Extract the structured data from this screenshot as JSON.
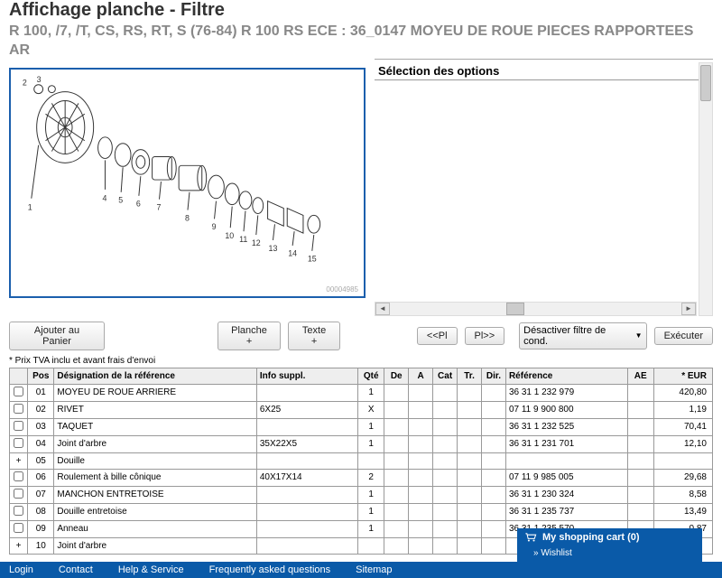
{
  "header": {
    "title": "Affichage planche - Filtre",
    "subtitle": "R 100, /7, /T, CS, RS, RT, S (76-84) R 100 RS ECE : 36_0147 MOYEU DE ROUE PIECES RAPPORTEES AR"
  },
  "rightPanel": {
    "optionsHeader": "Sélection des options"
  },
  "diagram": {
    "id": "00004985",
    "callouts": [
      "1",
      "2",
      "3",
      "4",
      "5",
      "6",
      "7",
      "8",
      "9",
      "10",
      "11",
      "12",
      "13",
      "14",
      "15"
    ],
    "border_color": "#1b5fad"
  },
  "toolbar": {
    "addCart": "Ajouter au Panier",
    "planche": "Planche +",
    "texte": "Texte +",
    "prevPl": "<<Pl",
    "nextPl": "Pl>>",
    "filterSelect": "Désactiver filtre de cond.",
    "execute": "Exécuter"
  },
  "note": "* Prix TVA inclu et avant frais d'envoi",
  "table": {
    "headers": [
      "",
      "Pos",
      "Désignation de la référence",
      "Info suppl.",
      "Qté",
      "De",
      "A",
      "Cat",
      "Tr.",
      "Dir.",
      "Référence",
      "AE",
      "* EUR"
    ],
    "rows": [
      {
        "chk": true,
        "pos": "01",
        "desc": "MOYEU DE ROUE ARRIERE",
        "info": "",
        "qte": "1",
        "de": "",
        "a": "",
        "cat": "",
        "tr": "",
        "dir": "",
        "ref": "36 31 1 232 979",
        "ae": "",
        "eur": "420,80"
      },
      {
        "chk": true,
        "pos": "02",
        "desc": "RIVET",
        "info": "6X25",
        "qte": "X",
        "de": "",
        "a": "",
        "cat": "",
        "tr": "",
        "dir": "",
        "ref": "07 11 9 900 800",
        "ae": "",
        "eur": "1,19"
      },
      {
        "chk": true,
        "pos": "03",
        "desc": "TAQUET",
        "info": "",
        "qte": "1",
        "de": "",
        "a": "",
        "cat": "",
        "tr": "",
        "dir": "",
        "ref": "36 31 1 232 525",
        "ae": "",
        "eur": "70,41"
      },
      {
        "chk": true,
        "pos": "04",
        "desc": "Joint d'arbre",
        "info": "35X22X5",
        "qte": "1",
        "de": "",
        "a": "",
        "cat": "",
        "tr": "",
        "dir": "",
        "ref": "36 31 1 231 701",
        "ae": "",
        "eur": "12,10"
      },
      {
        "plus": true,
        "pos": "05",
        "desc": "Douille",
        "info": "",
        "qte": "",
        "de": "",
        "a": "",
        "cat": "",
        "tr": "",
        "dir": "",
        "ref": "",
        "ae": "",
        "eur": ""
      },
      {
        "chk": true,
        "pos": "06",
        "desc": "Roulement à bille cônique",
        "info": "40X17X14",
        "qte": "2",
        "de": "",
        "a": "",
        "cat": "",
        "tr": "",
        "dir": "",
        "ref": "07 11 9 985 005",
        "ae": "",
        "eur": "29,68"
      },
      {
        "chk": true,
        "pos": "07",
        "desc": "MANCHON ENTRETOISE",
        "info": "",
        "qte": "1",
        "de": "",
        "a": "",
        "cat": "",
        "tr": "",
        "dir": "",
        "ref": "36 31 1 230 324",
        "ae": "",
        "eur": "8,58"
      },
      {
        "chk": true,
        "pos": "08",
        "desc": "Douille entretoise",
        "info": "",
        "qte": "1",
        "de": "",
        "a": "",
        "cat": "",
        "tr": "",
        "dir": "",
        "ref": "36 31 1 235 737",
        "ae": "",
        "eur": "13,49"
      },
      {
        "chk": true,
        "pos": "09",
        "desc": "Anneau",
        "info": "",
        "qte": "1",
        "de": "",
        "a": "",
        "cat": "",
        "tr": "",
        "dir": "",
        "ref": "36 31 1 235 570",
        "ae": "",
        "eur": "0,87"
      },
      {
        "plus": true,
        "pos": "10",
        "desc": "Joint d'arbre",
        "info": "",
        "qte": "",
        "de": "",
        "a": "",
        "cat": "",
        "tr": "",
        "dir": "",
        "ref": "",
        "ae": "",
        "eur": ""
      }
    ]
  },
  "cart": {
    "label": "My shopping cart (0)",
    "wishlist": "Wishlist"
  },
  "footer": {
    "links": [
      "Login",
      "Contact",
      "Help & Service",
      "Frequently asked questions",
      "Sitemap"
    ]
  },
  "colors": {
    "primary": "#0a5aa8",
    "border": "#999",
    "header_bg": "#eee"
  }
}
